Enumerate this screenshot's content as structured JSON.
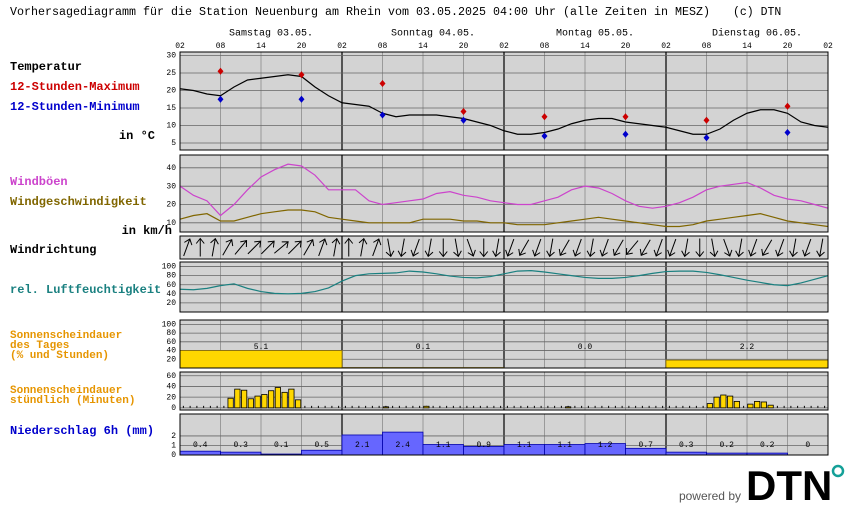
{
  "header": {
    "title": "Vorhersagediagramm für die Station Neuenburg am Rhein vom 03.05.2025 04:00 Uhr (alle Zeiten in MESZ)",
    "copyright": "(c) DTN"
  },
  "time_axis": {
    "days": [
      "Samstag 03.05.",
      "Sonntag 04.05.",
      "Montag 05.05.",
      "Dienstag 06.05."
    ],
    "hours": [
      "02",
      "08",
      "14",
      "20",
      "02",
      "08",
      "14",
      "20",
      "02",
      "08",
      "14",
      "20",
      "02",
      "08",
      "14",
      "20",
      "02"
    ]
  },
  "chart_data": [
    {
      "type": "line",
      "title": "Temperatur",
      "unit_label": "in °C",
      "ylim": [
        3,
        31
      ],
      "yticks": [
        5,
        10,
        15,
        20,
        25,
        30
      ],
      "grid": true,
      "series": [
        {
          "color": "#000000",
          "style": "line",
          "values": [
            20.5,
            20,
            19,
            18.5,
            21,
            23,
            23.5,
            24,
            24.5,
            24,
            21,
            18.5,
            16.5,
            16,
            15.5,
            13.5,
            12.5,
            13,
            13,
            13,
            12.5,
            12,
            11,
            10,
            8.5,
            7.5,
            7.5,
            8,
            9,
            10.5,
            11.5,
            12,
            12,
            11,
            10.5,
            10,
            9.5,
            8.5,
            7.5,
            7.5,
            9,
            11.5,
            13.5,
            14.5,
            14.5,
            13.5,
            11,
            10,
            9.5
          ]
        },
        {
          "name": "12-Stunden-Maximum",
          "color": "#cc0000",
          "style": "points",
          "values": [
            25.5,
            24.5,
            22,
            14,
            12.5,
            12.5,
            11.5,
            15.5
          ]
        },
        {
          "name": "12-Stunden-Minimum",
          "color": "#0000cc",
          "style": "points",
          "values": [
            17.5,
            17.5,
            13,
            11.5,
            7,
            7.5,
            6.5,
            8
          ]
        }
      ]
    },
    {
      "type": "line",
      "unit_label": "in km/h",
      "ylim": [
        5,
        47
      ],
      "yticks": [
        10,
        20,
        30,
        40
      ],
      "grid": true,
      "series": [
        {
          "name": "Windböen",
          "color": "#cc44cc",
          "style": "line",
          "values": [
            30,
            25,
            22,
            14,
            20,
            28,
            35,
            39,
            42,
            41,
            36,
            28,
            28,
            28,
            22,
            20,
            21,
            22,
            23,
            26,
            27,
            25,
            24,
            22,
            21,
            20,
            20,
            22,
            24,
            28,
            30,
            29,
            26,
            22,
            19,
            18,
            19,
            21,
            24,
            28,
            30,
            31,
            32,
            29,
            25,
            23,
            22,
            20,
            18
          ]
        },
        {
          "name": "Windgeschwindigkeit",
          "color": "#806600",
          "style": "line",
          "values": [
            12,
            14,
            15,
            11,
            11,
            13,
            15,
            16,
            17,
            17,
            16,
            13,
            12,
            11,
            10,
            10,
            10,
            10,
            12,
            12,
            12,
            11,
            11,
            10,
            10,
            9,
            9,
            9,
            10,
            11,
            12,
            13,
            12,
            11,
            10,
            9,
            8,
            8,
            9,
            11,
            12,
            13,
            14,
            15,
            13,
            11,
            10,
            9,
            8
          ]
        }
      ]
    },
    {
      "type": "arrows",
      "title": "Windrichtung",
      "values": [
        200,
        180,
        190,
        210,
        220,
        225,
        225,
        230,
        225,
        210,
        200,
        190,
        180,
        190,
        200,
        350,
        10,
        20,
        10,
        0,
        350,
        340,
        0,
        10,
        20,
        30,
        20,
        10,
        30,
        20,
        10,
        20,
        30,
        40,
        30,
        20,
        20,
        10,
        0,
        350,
        340,
        10,
        20,
        30,
        20,
        10,
        20,
        10
      ]
    },
    {
      "type": "line",
      "ylim": [
        0,
        110
      ],
      "yticks": [
        20,
        40,
        60,
        80,
        100
      ],
      "grid": true,
      "series": [
        {
          "name": "rel. Luftfeuchtigkeit",
          "color": "#1a8080",
          "style": "line",
          "values": [
            50,
            49,
            52,
            58,
            62,
            52,
            45,
            41,
            40,
            41,
            45,
            53,
            68,
            80,
            84,
            85,
            86,
            90,
            88,
            84,
            79,
            76,
            75,
            78,
            84,
            90,
            91,
            88,
            84,
            80,
            76,
            74,
            74,
            76,
            80,
            85,
            89,
            90,
            90,
            87,
            82,
            76,
            70,
            65,
            60,
            58,
            64,
            72,
            80
          ]
        }
      ]
    },
    {
      "type": "bar",
      "title_lines": [
        "Sonnenscheindauer",
        "des Tages",
        "(% und Stunden)"
      ],
      "title_color": "#e69500",
      "color": "#ffd700",
      "ylim": [
        0,
        110
      ],
      "yticks": [
        20,
        40,
        60,
        80,
        100
      ],
      "grid": true,
      "values": [
        40,
        1,
        0,
        18
      ],
      "hours": [
        "5.1",
        "0.1",
        "0.0",
        "2.2"
      ]
    },
    {
      "type": "bar",
      "title_lines": [
        "Sonnenscheindauer",
        "stündlich (Minuten)"
      ],
      "title_color": "#e69500",
      "color": "#ffd700",
      "ylim": [
        -4,
        67
      ],
      "yticks": [
        0,
        20,
        40,
        60
      ],
      "grid": true,
      "values": [
        0,
        0,
        0,
        0,
        0,
        0,
        0,
        18,
        35,
        33,
        17,
        22,
        25,
        32,
        38,
        29,
        35,
        15,
        0,
        0,
        0,
        0,
        0,
        0,
        0,
        0,
        0,
        0,
        0,
        0,
        2,
        0,
        0,
        0,
        0,
        0,
        3,
        0,
        0,
        0,
        0,
        0,
        0,
        0,
        0,
        0,
        0,
        0,
        0,
        0,
        0,
        0,
        0,
        0,
        0,
        0,
        0,
        2,
        0,
        0,
        0,
        0,
        0,
        0,
        0,
        0,
        0,
        0,
        0,
        0,
        0,
        0,
        0,
        0,
        0,
        0,
        0,
        0,
        8,
        20,
        24,
        22,
        12,
        0,
        7,
        12,
        11,
        5,
        0,
        0,
        0,
        0,
        0,
        0,
        0,
        0
      ]
    },
    {
      "type": "bar",
      "title": "Niederschlag 6h (mm)",
      "title_color": "#0000cc",
      "color": "#6666ff",
      "data_labels": true,
      "ylim": [
        0,
        4.3
      ],
      "yticks": [
        0,
        1,
        2
      ],
      "grid": true,
      "values": [
        0.4,
        0.3,
        0.1,
        0.5,
        2.1,
        2.4,
        1.1,
        0.9,
        1.1,
        1.1,
        1.2,
        0.7,
        0.3,
        0.2,
        0.2,
        0
      ]
    }
  ],
  "footer": {
    "powered_by": "powered by",
    "logo": "DTN"
  }
}
